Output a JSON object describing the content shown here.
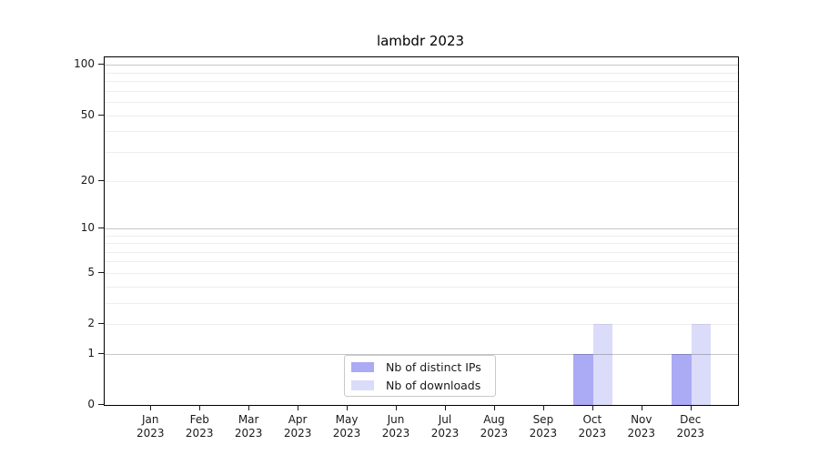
{
  "chart_data": {
    "type": "bar",
    "title": "lambdr 2023",
    "x": {
      "months": [
        "Jan",
        "Feb",
        "Mar",
        "Apr",
        "May",
        "Jun",
        "Jul",
        "Aug",
        "Sep",
        "Oct",
        "Nov",
        "Dec"
      ],
      "year": "2023"
    },
    "series": [
      {
        "name": "Nb of distinct IPs",
        "color": "#aaaaf5",
        "values": [
          0,
          0,
          0,
          0,
          0,
          0,
          0,
          0,
          0,
          1,
          0,
          1
        ]
      },
      {
        "name": "Nb of downloads",
        "color": "#dbdbfa",
        "values": [
          0,
          0,
          0,
          0,
          0,
          0,
          0,
          0,
          0,
          2,
          0,
          2
        ]
      }
    ],
    "y_axis": {
      "scale": "log1p",
      "tick_labels": [
        0,
        1,
        2,
        5,
        10,
        20,
        50,
        100
      ],
      "major_gridlines": [
        1,
        10,
        100
      ],
      "minor_gridlines": [
        2,
        3,
        4,
        5,
        6,
        7,
        8,
        9,
        20,
        30,
        40,
        50,
        60,
        70,
        80,
        90
      ],
      "min": 0,
      "max": 111
    },
    "x_axis": {
      "pad_left": 0.95,
      "pad_right": 0.95,
      "bar_width": 0.4
    },
    "legend": {
      "position": "lower center"
    },
    "colors": {
      "major_grid": "rgba(0,0,0,0.22)",
      "minor_grid": "rgba(0,0,0,0.07)",
      "spine": "#000000",
      "text": "#1a1a1a"
    }
  }
}
